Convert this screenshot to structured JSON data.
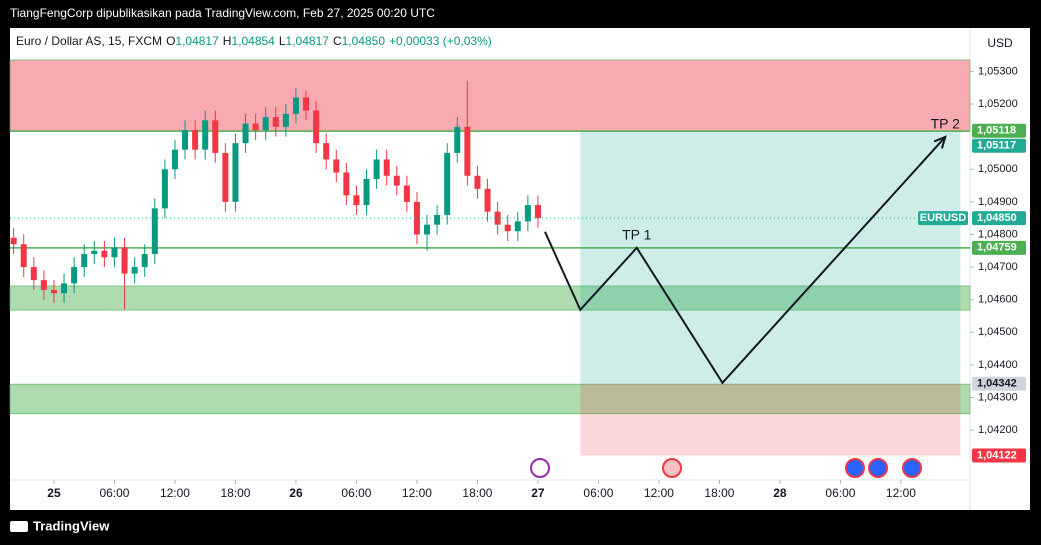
{
  "header": {
    "publisher": "TiangFengCorp dipublikasikan pada TradingView.com, Feb 27, 2025 00:20 UTC",
    "symbol": "Euro / Dollar AS, 15, FXCM",
    "ohlc": [
      {
        "key": "O",
        "value": "1,04817"
      },
      {
        "key": "H",
        "value": "1,04854"
      },
      {
        "key": "L",
        "value": "1,04817"
      },
      {
        "key": "C",
        "value": "1,04850"
      }
    ],
    "change": "+0,00033 (+0,03%)"
  },
  "currency": "USD",
  "brand": "TradingView",
  "chart_data": {
    "type": "candlestick",
    "up_color": "#089981",
    "down_color": "#f23645",
    "x": [
      -4,
      -3,
      -2,
      -1,
      0,
      1,
      2,
      3,
      4,
      5,
      6,
      7,
      8,
      9,
      10,
      11,
      12,
      13,
      14,
      15,
      16,
      17,
      18,
      19,
      20,
      21,
      22,
      23,
      24,
      25,
      26,
      27,
      28,
      29,
      30,
      31,
      32,
      33,
      34,
      35,
      36,
      37,
      38,
      39,
      40,
      41,
      42,
      43,
      44,
      45,
      46,
      47,
      48
    ],
    "open": [
      1.0479,
      1.0477,
      1.047,
      1.0466,
      1.0463,
      1.0462,
      1.0465,
      1.047,
      1.0474,
      1.0475,
      1.0473,
      1.0476,
      1.0468,
      1.047,
      1.0474,
      1.0488,
      1.05,
      1.0506,
      1.0512,
      1.0506,
      1.0515,
      1.0505,
      1.049,
      1.0508,
      1.0514,
      1.0512,
      1.0516,
      1.0513,
      1.0517,
      1.0522,
      1.0518,
      1.0508,
      1.0503,
      1.0499,
      1.0492,
      1.0489,
      1.0497,
      1.0503,
      1.0498,
      1.0495,
      1.049,
      1.048,
      1.0483,
      1.0486,
      1.0505,
      1.0513,
      1.0498,
      1.0494,
      1.0487,
      1.0483,
      1.0481,
      1.0484,
      1.0489
    ],
    "high": [
      1.0482,
      1.048,
      1.0473,
      1.0469,
      1.0466,
      1.0468,
      1.0473,
      1.0477,
      1.0478,
      1.0478,
      1.0479,
      1.0479,
      1.0473,
      1.0477,
      1.0491,
      1.0503,
      1.0509,
      1.0515,
      1.0515,
      1.0518,
      1.0518,
      1.0508,
      1.0511,
      1.0517,
      1.0517,
      1.0519,
      1.0519,
      1.052,
      1.0525,
      1.0524,
      1.0521,
      1.0511,
      1.0506,
      1.0502,
      1.0495,
      1.05,
      1.0506,
      1.0506,
      1.0501,
      1.0498,
      1.0493,
      1.0486,
      1.0489,
      1.0508,
      1.0516,
      1.0527,
      1.0501,
      1.0497,
      1.049,
      1.0486,
      1.0487,
      1.0492,
      1.0492
    ],
    "low": [
      1.0474,
      1.0467,
      1.0463,
      1.046,
      1.0459,
      1.0459,
      1.0462,
      1.0467,
      1.0471,
      1.047,
      1.047,
      1.0457,
      1.0465,
      1.0467,
      1.0471,
      1.0485,
      1.0497,
      1.0503,
      1.0503,
      1.0503,
      1.0502,
      1.0487,
      1.0487,
      1.0505,
      1.0509,
      1.0509,
      1.051,
      1.051,
      1.0514,
      1.0515,
      1.0505,
      1.05,
      1.0496,
      1.0489,
      1.0486,
      1.0486,
      1.0494,
      1.0495,
      1.0492,
      1.0487,
      1.0477,
      1.0475,
      1.048,
      1.0483,
      1.0502,
      1.0495,
      1.0491,
      1.0484,
      1.048,
      1.0478,
      1.0478,
      1.0481,
      1.0482
    ],
    "close": [
      1.0477,
      1.047,
      1.0466,
      1.0463,
      1.0462,
      1.0465,
      1.047,
      1.0474,
      1.0475,
      1.0473,
      1.0476,
      1.0468,
      1.047,
      1.0474,
      1.0488,
      1.05,
      1.0506,
      1.0512,
      1.0506,
      1.0515,
      1.0505,
      1.049,
      1.0508,
      1.0514,
      1.0512,
      1.0516,
      1.0513,
      1.0517,
      1.0522,
      1.0518,
      1.0508,
      1.0503,
      1.0499,
      1.0492,
      1.0489,
      1.0497,
      1.0503,
      1.0498,
      1.0495,
      1.049,
      1.048,
      1.0483,
      1.0486,
      1.0505,
      1.0513,
      1.0498,
      1.0494,
      1.0487,
      1.0483,
      1.0481,
      1.0484,
      1.0489,
      1.0485
    ],
    "xlim": [
      -4.36,
      90.85
    ],
    "ylim": [
      1.04047,
      1.05427
    ],
    "xticks": [
      {
        "value": 0,
        "label": "25"
      },
      {
        "value": 6,
        "label": "06:00"
      },
      {
        "value": 12,
        "label": "12:00"
      },
      {
        "value": 18,
        "label": "18:00"
      },
      {
        "value": 24,
        "label": "26"
      },
      {
        "value": 30,
        "label": "06:00"
      },
      {
        "value": 36,
        "label": "12:00"
      },
      {
        "value": 42,
        "label": "18:00"
      },
      {
        "value": 48,
        "label": "27"
      },
      {
        "value": 54,
        "label": "06:00"
      },
      {
        "value": 60,
        "label": "12:00"
      },
      {
        "value": 66,
        "label": "18:00"
      },
      {
        "value": 72,
        "label": "28"
      },
      {
        "value": 78,
        "label": "06:00"
      },
      {
        "value": 84,
        "label": "12:00"
      }
    ],
    "yticks": [
      {
        "value": 1.042,
        "label": "1,04200"
      },
      {
        "value": 1.043,
        "label": "1,04300"
      },
      {
        "value": 1.044,
        "label": "1,04400"
      },
      {
        "value": 1.045,
        "label": "1,04500"
      },
      {
        "value": 1.046,
        "label": "1,04600"
      },
      {
        "value": 1.047,
        "label": "1,04700"
      },
      {
        "value": 1.048,
        "label": "1,04800"
      },
      {
        "value": 1.049,
        "label": "1,04900"
      },
      {
        "value": 1.05,
        "label": "1,05000"
      },
      {
        "value": 1.052,
        "label": "1,05200"
      },
      {
        "value": 1.053,
        "label": "1,05300"
      }
    ],
    "zones": [
      {
        "top": 1.05335,
        "bottom": 1.05118,
        "color": "#f7a1a8"
      },
      {
        "top": 1.04642,
        "bottom": 1.04568,
        "color": "#a5d8a7"
      },
      {
        "top": 1.04341,
        "bottom": 1.0425,
        "color": "#a5d8a7"
      }
    ],
    "levels": [
      {
        "value": 1.05117,
        "color": "#4caf50"
      },
      {
        "value": 1.04759,
        "color": "#4caf50"
      }
    ],
    "position": {
      "x_start": 52.2,
      "x_end": 89.9,
      "target": 1.05117,
      "entry": 1.04342,
      "stop": 1.04122
    },
    "projection": {
      "x": [
        48.7,
        52.2,
        57.8,
        66.3,
        88.4
      ],
      "y": [
        1.04808,
        1.04569,
        1.04759,
        1.04345,
        1.05099
      ]
    },
    "annotations": [
      "TP 1",
      "TP 2"
    ],
    "symbol_tag": "EURUSD",
    "price_labels": [
      {
        "value": 1.05118,
        "label": "1,05118",
        "color": "#4caf50"
      },
      {
        "value": 1.05117,
        "label": "1,05117",
        "color": "#22ab94"
      },
      {
        "value": 1.0485,
        "label": "1,04850",
        "color": "#22ab94"
      },
      {
        "value": 1.04759,
        "label": "1,04759",
        "color": "#4caf50"
      },
      {
        "value": 1.04342,
        "label": "1,04342",
        "color": "#d1d4dc"
      },
      {
        "value": 1.04122,
        "label": "1,04122",
        "color": "#f23645"
      }
    ]
  }
}
